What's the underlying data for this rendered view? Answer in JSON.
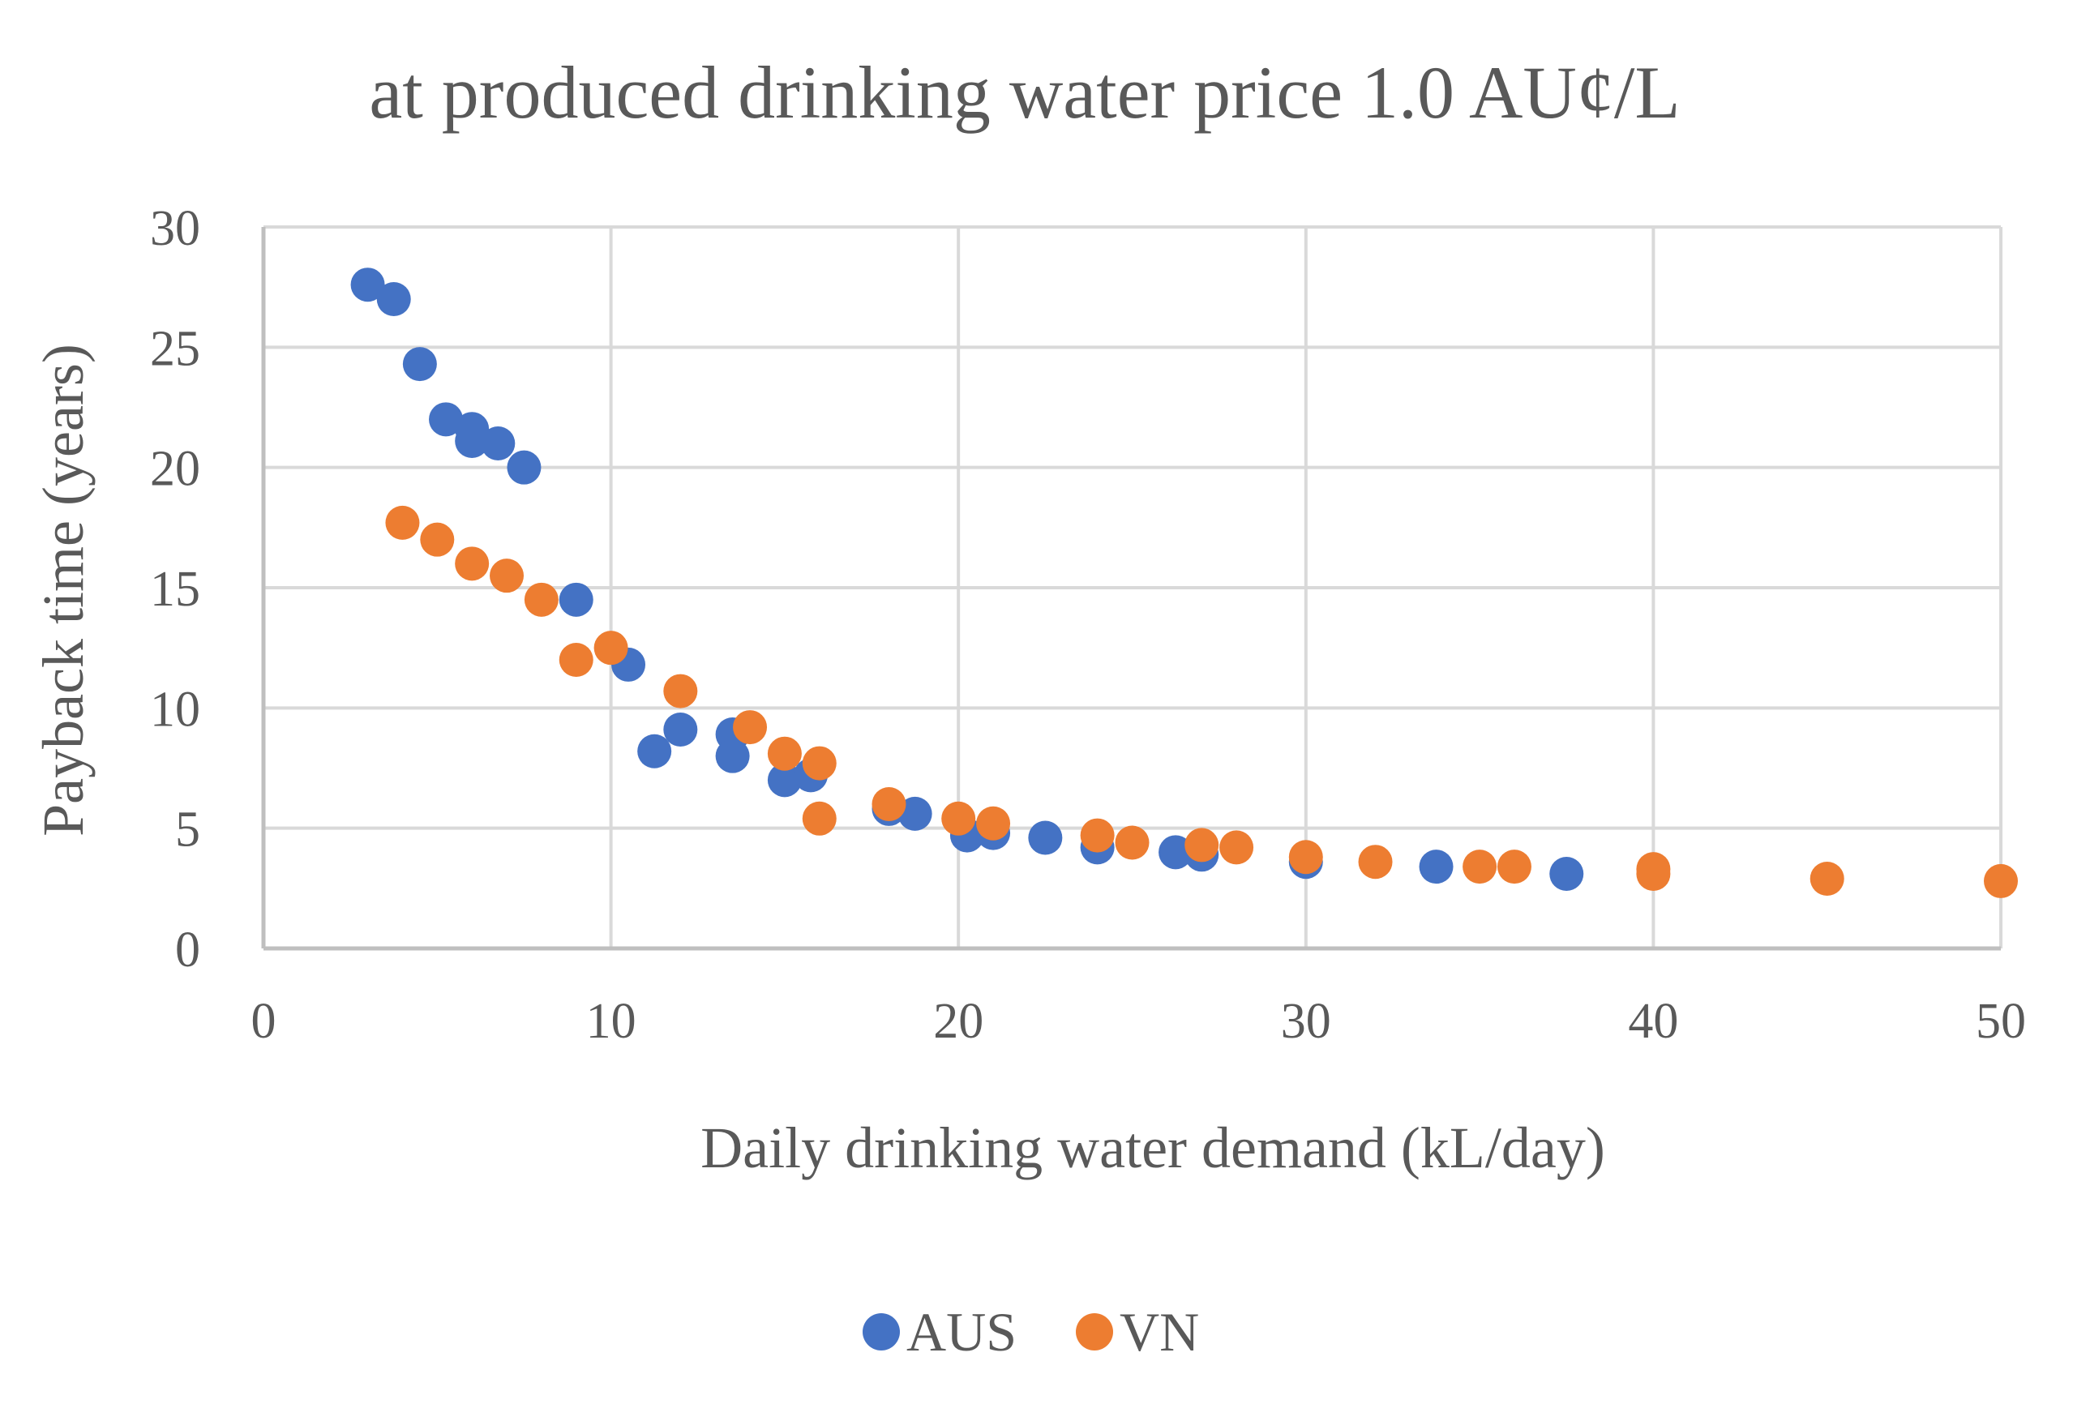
{
  "chart_data": {
    "type": "scatter",
    "title": "at produced drinking water price 1.0 AU¢/L",
    "xlabel": "Daily drinking water demand (kL/day)",
    "ylabel": "Payback time (years)",
    "xlim": [
      0,
      50
    ],
    "ylim": [
      0,
      30
    ],
    "xticks": [
      0,
      10,
      20,
      30,
      40,
      50
    ],
    "yticks": [
      0,
      5,
      10,
      15,
      20,
      25,
      30
    ],
    "x_tick_labels": [
      "0",
      "10",
      "20",
      "30",
      "40",
      "50"
    ],
    "y_tick_labels": [
      "0",
      "5",
      "10",
      "15",
      "20",
      "25",
      "30"
    ],
    "grid": true,
    "legend_position": "bottom",
    "series": [
      {
        "name": "AUS",
        "color": "#4472C4",
        "points": [
          [
            3.0,
            27.6
          ],
          [
            3.75,
            27.0
          ],
          [
            4.5,
            24.3
          ],
          [
            5.25,
            22.0
          ],
          [
            6.0,
            21.6
          ],
          [
            6.0,
            21.1
          ],
          [
            6.75,
            21.0
          ],
          [
            7.5,
            20.0
          ],
          [
            9.0,
            14.5
          ],
          [
            10.5,
            11.8
          ],
          [
            11.25,
            8.2
          ],
          [
            12.0,
            9.1
          ],
          [
            13.5,
            8.9
          ],
          [
            13.5,
            8.0
          ],
          [
            15.0,
            7.0
          ],
          [
            15.75,
            7.2
          ],
          [
            18.0,
            5.8
          ],
          [
            18.75,
            5.6
          ],
          [
            20.25,
            4.7
          ],
          [
            21.0,
            4.8
          ],
          [
            22.5,
            4.6
          ],
          [
            24.0,
            4.2
          ],
          [
            26.25,
            4.0
          ],
          [
            27.0,
            3.9
          ],
          [
            30.0,
            3.6
          ],
          [
            33.75,
            3.4
          ],
          [
            37.5,
            3.1
          ]
        ]
      },
      {
        "name": "VN",
        "color": "#ED7D31",
        "points": [
          [
            4.0,
            17.7
          ],
          [
            5.0,
            17.0
          ],
          [
            6.0,
            16.0
          ],
          [
            7.0,
            15.5
          ],
          [
            8.0,
            14.5
          ],
          [
            9.0,
            12.0
          ],
          [
            10.0,
            12.5
          ],
          [
            12.0,
            10.7
          ],
          [
            14.0,
            9.2
          ],
          [
            15.0,
            8.1
          ],
          [
            16.0,
            7.7
          ],
          [
            16.0,
            5.4
          ],
          [
            18.0,
            6.0
          ],
          [
            20.0,
            5.4
          ],
          [
            21.0,
            5.2
          ],
          [
            24.0,
            4.7
          ],
          [
            25.0,
            4.4
          ],
          [
            27.0,
            4.3
          ],
          [
            28.0,
            4.2
          ],
          [
            30.0,
            3.8
          ],
          [
            32.0,
            3.6
          ],
          [
            35.0,
            3.4
          ],
          [
            36.0,
            3.4
          ],
          [
            40.0,
            3.3
          ],
          [
            40.0,
            3.1
          ],
          [
            45.0,
            2.9
          ],
          [
            50.0,
            2.8
          ]
        ]
      }
    ]
  }
}
